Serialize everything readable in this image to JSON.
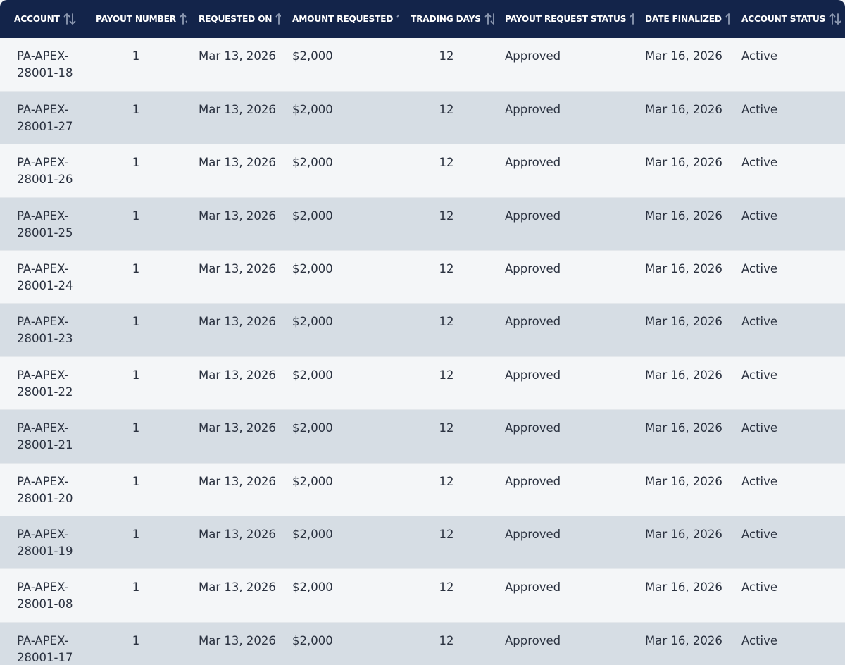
{
  "colors": {
    "header_bg": "#13244a",
    "header_text": "#ffffff",
    "row_light": "#f4f6f8",
    "row_dark": "#d6dde4",
    "body_text": "#2b3240",
    "sort_icon": "#8f9bb3"
  },
  "table": {
    "sort_icon": "sort-arrows-icon",
    "columns": [
      "ACCOUNT",
      "PAYOUT NUMBER",
      "REQUESTED ON",
      "AMOUNT REQUESTED",
      "TRADING DAYS",
      "PAYOUT REQUEST STATUS",
      "DATE FINALIZED",
      "ACCOUNT STATUS"
    ],
    "rows": [
      {
        "account_prefix": "PA-APEX-",
        "account_suffix": "28001-18",
        "payout_number": "1",
        "requested_on": "Mar 13, 2026",
        "amount": "$2,000",
        "trading_days": "12",
        "payout_status": "Approved",
        "date_finalized": "Mar 16, 2026",
        "account_status": "Active"
      },
      {
        "account_prefix": "PA-APEX-",
        "account_suffix": "28001-27",
        "payout_number": "1",
        "requested_on": "Mar 13, 2026",
        "amount": "$2,000",
        "trading_days": "12",
        "payout_status": "Approved",
        "date_finalized": "Mar 16, 2026",
        "account_status": "Active"
      },
      {
        "account_prefix": "PA-APEX-",
        "account_suffix": "28001-26",
        "payout_number": "1",
        "requested_on": "Mar 13, 2026",
        "amount": "$2,000",
        "trading_days": "12",
        "payout_status": "Approved",
        "date_finalized": "Mar 16, 2026",
        "account_status": "Active"
      },
      {
        "account_prefix": "PA-APEX-",
        "account_suffix": "28001-25",
        "payout_number": "1",
        "requested_on": "Mar 13, 2026",
        "amount": "$2,000",
        "trading_days": "12",
        "payout_status": "Approved",
        "date_finalized": "Mar 16, 2026",
        "account_status": "Active"
      },
      {
        "account_prefix": "PA-APEX-",
        "account_suffix": "28001-24",
        "payout_number": "1",
        "requested_on": "Mar 13, 2026",
        "amount": "$2,000",
        "trading_days": "12",
        "payout_status": "Approved",
        "date_finalized": "Mar 16, 2026",
        "account_status": "Active"
      },
      {
        "account_prefix": "PA-APEX-",
        "account_suffix": "28001-23",
        "payout_number": "1",
        "requested_on": "Mar 13, 2026",
        "amount": "$2,000",
        "trading_days": "12",
        "payout_status": "Approved",
        "date_finalized": "Mar 16, 2026",
        "account_status": "Active"
      },
      {
        "account_prefix": "PA-APEX-",
        "account_suffix": "28001-22",
        "payout_number": "1",
        "requested_on": "Mar 13, 2026",
        "amount": "$2,000",
        "trading_days": "12",
        "payout_status": "Approved",
        "date_finalized": "Mar 16, 2026",
        "account_status": "Active"
      },
      {
        "account_prefix": "PA-APEX-",
        "account_suffix": "28001-21",
        "payout_number": "1",
        "requested_on": "Mar 13, 2026",
        "amount": "$2,000",
        "trading_days": "12",
        "payout_status": "Approved",
        "date_finalized": "Mar 16, 2026",
        "account_status": "Active"
      },
      {
        "account_prefix": "PA-APEX-",
        "account_suffix": "28001-20",
        "payout_number": "1",
        "requested_on": "Mar 13, 2026",
        "amount": "$2,000",
        "trading_days": "12",
        "payout_status": "Approved",
        "date_finalized": "Mar 16, 2026",
        "account_status": "Active"
      },
      {
        "account_prefix": "PA-APEX-",
        "account_suffix": "28001-19",
        "payout_number": "1",
        "requested_on": "Mar 13, 2026",
        "amount": "$2,000",
        "trading_days": "12",
        "payout_status": "Approved",
        "date_finalized": "Mar 16, 2026",
        "account_status": "Active"
      },
      {
        "account_prefix": "PA-APEX-",
        "account_suffix": "28001-08",
        "payout_number": "1",
        "requested_on": "Mar 13, 2026",
        "amount": "$2,000",
        "trading_days": "12",
        "payout_status": "Approved",
        "date_finalized": "Mar 16, 2026",
        "account_status": "Active"
      },
      {
        "account_prefix": "PA-APEX-",
        "account_suffix": "28001-17",
        "payout_number": "1",
        "requested_on": "Mar 13, 2026",
        "amount": "$2,000",
        "trading_days": "12",
        "payout_status": "Approved",
        "date_finalized": "Mar 16, 2026",
        "account_status": "Active"
      }
    ]
  }
}
